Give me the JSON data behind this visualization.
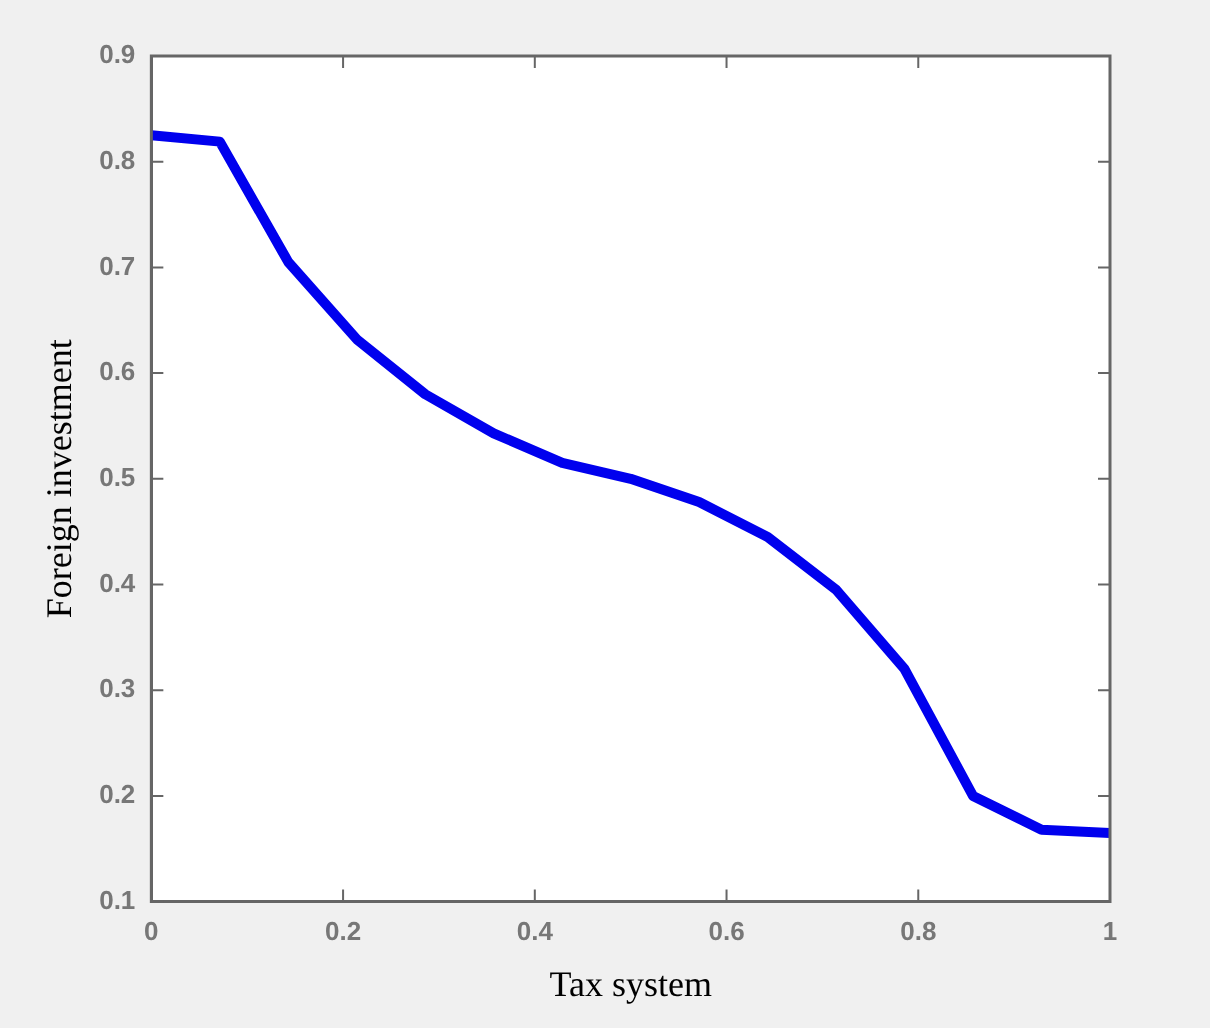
{
  "chart_data": {
    "type": "line",
    "xlabel": "Tax system",
    "ylabel": "Foreign investment",
    "x": [
      0,
      0.0714,
      0.1429,
      0.2143,
      0.2857,
      0.3571,
      0.4286,
      0.5,
      0.5714,
      0.6429,
      0.7143,
      0.7857,
      0.8571,
      0.9286,
      1
    ],
    "series": [
      {
        "color": "#0000ee",
        "values": [
          0.825,
          0.819,
          0.705,
          0.632,
          0.58,
          0.543,
          0.515,
          0.5,
          0.478,
          0.445,
          0.395,
          0.32,
          0.2,
          0.168,
          0.165
        ]
      }
    ],
    "xlim": [
      0,
      1
    ],
    "xticks": [
      0,
      0.2,
      0.4,
      0.6,
      0.8,
      1
    ],
    "ylim": [
      0.1,
      0.9
    ],
    "yticks": [
      0.1,
      0.2,
      0.3,
      0.4,
      0.5,
      0.6,
      0.7,
      0.8,
      0.9
    ],
    "grid": false,
    "legend": false,
    "marker": "none",
    "line_style": "solid"
  }
}
